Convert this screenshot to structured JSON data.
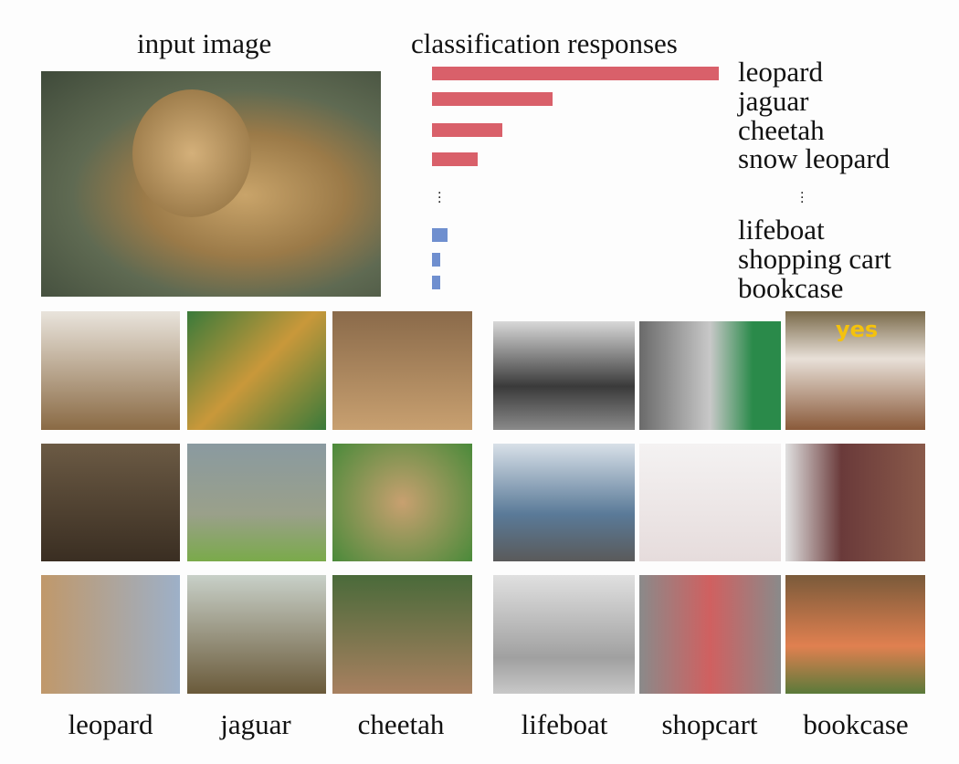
{
  "titles": {
    "input": "input image",
    "responses": "classification responses"
  },
  "chart_data": {
    "type": "bar",
    "orientation": "horizontal",
    "title": "classification responses",
    "categories": [
      "leopard",
      "jaguar",
      "cheetah",
      "snow leopard",
      "lifeboat",
      "shopping cart",
      "bookcase"
    ],
    "values": [
      1.0,
      0.42,
      0.245,
      0.16,
      0.055,
      0.03,
      0.03
    ],
    "colors": [
      "#d9606a",
      "#d9606a",
      "#d9606a",
      "#d9606a",
      "#6f8fcf",
      "#6f8fcf",
      "#6f8fcf"
    ],
    "ellipsis_after_index": 3,
    "grid": false
  },
  "captions": [
    "leopard",
    "jaguar",
    "cheetah",
    "lifeboat",
    "shopcart",
    "bookcase"
  ],
  "bookcase_sign": "yes"
}
